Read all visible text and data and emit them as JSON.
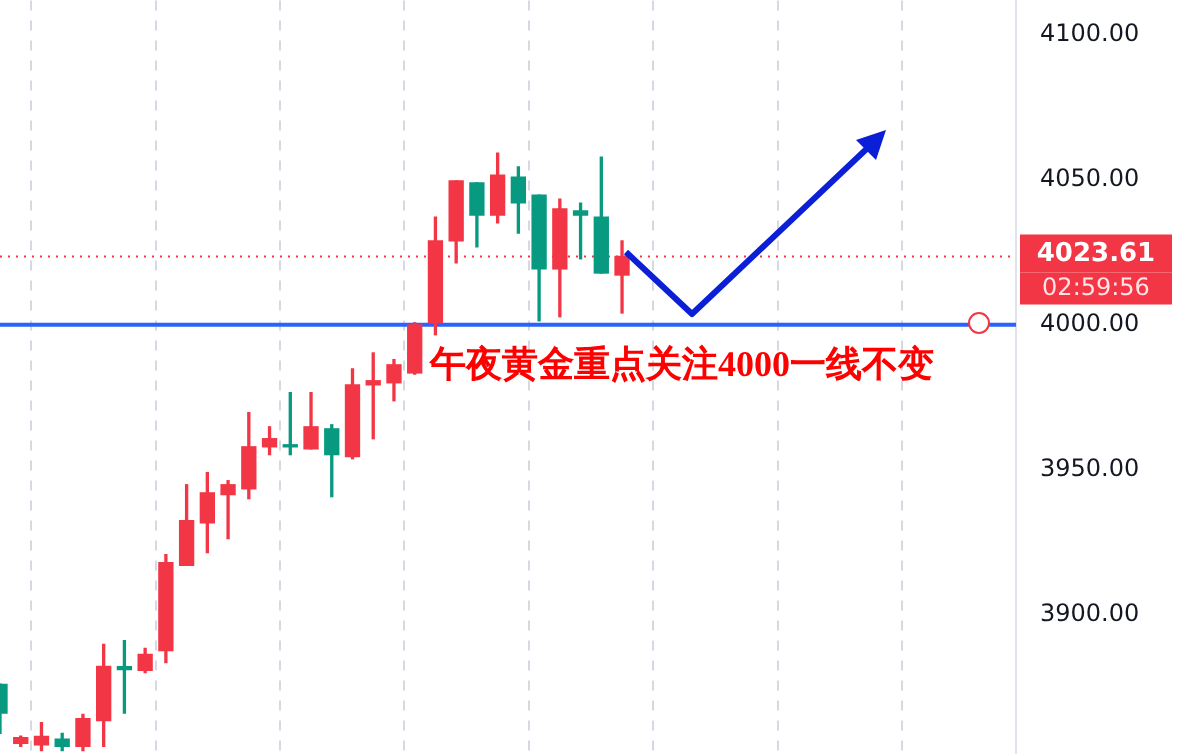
{
  "chart_data": {
    "type": "candlestick",
    "categories": [
      null,
      null,
      null,
      null,
      null,
      null,
      null,
      null,
      null,
      null,
      null,
      null,
      null,
      null,
      null,
      null,
      null,
      null,
      null,
      null,
      null,
      null,
      null,
      null,
      null,
      null,
      null,
      null,
      null,
      null,
      null,
      null,
      null,
      null,
      null,
      null,
      null,
      null,
      null,
      null,
      null,
      null,
      null,
      null,
      null,
      null,
      null,
      null,
      null,
      null
    ],
    "ohlc": [
      [
        3875.9,
        3876,
        3859,
        3866
      ],
      [
        3855.5,
        3858,
        3854.5,
        3857.5
      ],
      [
        3855,
        3862.7,
        3853,
        3857.9
      ],
      [
        3857,
        3859,
        3853,
        3854.5
      ],
      [
        3854.5,
        3865.5,
        3853,
        3864.1
      ],
      [
        3863.4,
        3889.7,
        3854.5,
        3882.1
      ],
      [
        3882,
        3891,
        3866,
        3881
      ],
      [
        3880.7,
        3888.3,
        3880,
        3886.2
      ],
      [
        3887.6,
        3920.7,
        3883.4,
        3917.9
      ],
      [
        3917,
        3944.8,
        3917,
        3932.4
      ],
      [
        3931.7,
        3949,
        3921.4,
        3942
      ],
      [
        3941.4,
        3946.2,
        3926.2,
        3944.8
      ],
      [
        3943.4,
        3969.7,
        3940,
        3957.9
      ],
      [
        3957.9,
        3964.8,
        3955.2,
        3960.7
      ],
      [
        3958.6,
        3976.6,
        3955.2,
        3957.9
      ],
      [
        3957.2,
        3976.6,
        3957.2,
        3964.8
      ],
      [
        3964.1,
        3965.5,
        3940.7,
        3955.2
      ],
      [
        3954.5,
        3984.8,
        3953.8,
        3979.3
      ],
      [
        3979.3,
        3990.3,
        3960.7,
        3980.7
      ],
      [
        3980,
        3988,
        3973.8,
        3986.2
      ],
      [
        3983.4,
        4000.7,
        3983,
        4000
      ],
      [
        4000.7,
        4037.2,
        3996.6,
        4029
      ],
      [
        4029,
        4049.7,
        4021.4,
        4049.7
      ],
      [
        4049,
        4049,
        4026.9,
        4037.9
      ],
      [
        4037.9,
        4059.3,
        4035.2,
        4051.7
      ],
      [
        4051,
        4054.5,
        4031.7,
        4042.1
      ],
      [
        4044.8,
        4044.8,
        4001.4,
        4019.3
      ],
      [
        4019.3,
        4043.4,
        4002.8,
        4040
      ],
      [
        4039.3,
        4042,
        4022.8,
        4037.9
      ],
      [
        4037.2,
        4057.9,
        4017.9,
        4017.9
      ],
      [
        4017.2,
        4029,
        4004.1,
        4023.61
      ],
      null,
      null,
      null,
      null,
      null,
      null,
      null,
      null,
      null,
      null,
      null,
      null,
      null,
      null,
      null,
      null,
      null,
      null,
      null
    ],
    "colors": [
      "#089981",
      "#f23645",
      "#f23645",
      "#089981",
      "#f23645",
      "#f23645",
      "#089981",
      "#f23645",
      "#f23645",
      "#f23645",
      "#f23645",
      "#f23645",
      "#f23645",
      "#f23645",
      "#089981",
      "#f23645",
      "#089981",
      "#f23645",
      "#f23645",
      "#f23645",
      "#f23645",
      "#f23645",
      "#f23645",
      "#089981",
      "#f23645",
      "#089981",
      "#089981",
      "#f23645",
      "#089981",
      "#089981",
      "#f23645",
      null,
      null,
      null,
      null,
      null,
      null,
      null,
      null,
      null,
      null,
      null,
      null,
      null,
      null,
      null,
      null,
      null,
      null,
      null
    ],
    "ylim": [
      3852,
      4112
    ],
    "yticks": [
      {
        "value": 3900,
        "label": "3900.00"
      },
      {
        "value": 3950,
        "label": "3950.00"
      },
      {
        "value": 4000,
        "label": "4000.00"
      },
      {
        "value": 4050,
        "label": "4050.00"
      },
      {
        "value": 4100,
        "label": "4100.00"
      }
    ],
    "grid": "x",
    "tick_labels": "y",
    "ref_lines": [
      {
        "axis": "y",
        "value": 4000,
        "color": "#2962ff",
        "label": "午夜黄金重点关注4000一线不变"
      },
      {
        "axis": "y",
        "value": 4023.61,
        "color": "#f23645",
        "line_style": "dotted",
        "label": "4023.61"
      }
    ],
    "annotations": [
      "02:59:56"
    ]
  }
}
